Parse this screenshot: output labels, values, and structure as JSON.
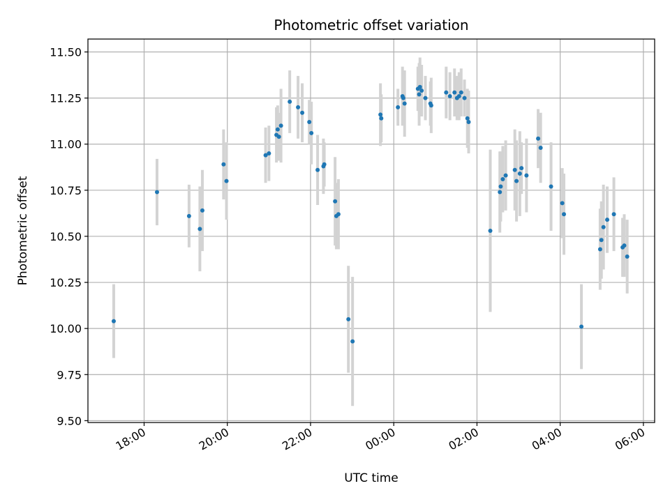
{
  "chart_data": {
    "type": "scatter",
    "title": "Photometric offset variation",
    "xlabel": "UTC time",
    "ylabel": "Photometric offset",
    "x_unit": "hours since 00:00 UTC (negative = previous day)",
    "xlim": [
      -7.35,
      6.27
    ],
    "ylim": [
      9.49,
      11.57
    ],
    "grid": true,
    "x_ticks": [
      -6,
      -4,
      -2,
      0,
      2,
      4,
      6
    ],
    "x_tick_labels": [
      "18:00",
      "20:00",
      "22:00",
      "00:00",
      "02:00",
      "04:00",
      "06:00"
    ],
    "y_ticks": [
      9.5,
      9.75,
      10.0,
      10.25,
      10.5,
      10.75,
      11.0,
      11.25,
      11.5
    ],
    "y_tick_labels": [
      "9.50",
      "9.75",
      "10.00",
      "10.25",
      "10.50",
      "10.75",
      "11.00",
      "11.25",
      "11.50"
    ],
    "colors": {
      "point": "#1f77b4",
      "errorbar": "#d3d3d3",
      "grid": "#b0b0b0",
      "axes": "#000000"
    },
    "series": [
      {
        "name": "offset",
        "points": [
          [
            -6.73,
            10.04,
            0.2
          ],
          [
            -5.69,
            10.74,
            0.18
          ],
          [
            -4.92,
            10.61,
            0.17
          ],
          [
            -4.66,
            10.54,
            0.23
          ],
          [
            -4.6,
            10.64,
            0.22
          ],
          [
            -4.09,
            10.89,
            0.19
          ],
          [
            -4.02,
            10.8,
            0.21
          ],
          [
            -3.08,
            10.94,
            0.15
          ],
          [
            -3.0,
            10.95,
            0.15
          ],
          [
            -2.82,
            11.05,
            0.15
          ],
          [
            -2.79,
            11.08,
            0.13
          ],
          [
            -2.76,
            11.04,
            0.13
          ],
          [
            -2.71,
            11.1,
            0.2
          ],
          [
            -2.5,
            11.23,
            0.17
          ],
          [
            -2.3,
            11.2,
            0.17
          ],
          [
            -2.2,
            11.17,
            0.16
          ],
          [
            -2.03,
            11.12,
            0.12
          ],
          [
            -1.98,
            11.06,
            0.17
          ],
          [
            -1.83,
            10.86,
            0.19
          ],
          [
            -1.69,
            10.88,
            0.15
          ],
          [
            -1.67,
            10.89,
            0.12
          ],
          [
            -1.41,
            10.69,
            0.24
          ],
          [
            -1.38,
            10.61,
            0.18
          ],
          [
            -1.33,
            10.62,
            0.19
          ],
          [
            -1.09,
            10.05,
            0.29
          ],
          [
            -0.99,
            9.93,
            0.35
          ],
          [
            -0.32,
            11.16,
            0.17
          ],
          [
            -0.3,
            11.14,
            0.13
          ],
          [
            0.1,
            11.2,
            0.1
          ],
          [
            0.21,
            11.26,
            0.16
          ],
          [
            0.23,
            11.25,
            0.14
          ],
          [
            0.26,
            11.22,
            0.18
          ],
          [
            0.58,
            11.3,
            0.12
          ],
          [
            0.61,
            11.27,
            0.17
          ],
          [
            0.63,
            11.31,
            0.16
          ],
          [
            0.67,
            11.29,
            0.14
          ],
          [
            0.76,
            11.25,
            0.12
          ],
          [
            0.88,
            11.22,
            0.12
          ],
          [
            0.9,
            11.21,
            0.15
          ],
          [
            1.26,
            11.28,
            0.14
          ],
          [
            1.35,
            11.26,
            0.13
          ],
          [
            1.46,
            11.28,
            0.13
          ],
          [
            1.52,
            11.25,
            0.12
          ],
          [
            1.57,
            11.26,
            0.13
          ],
          [
            1.62,
            11.28,
            0.13
          ],
          [
            1.7,
            11.25,
            0.1
          ],
          [
            1.77,
            11.14,
            0.16
          ],
          [
            1.8,
            11.12,
            0.17
          ],
          [
            2.32,
            10.53,
            0.44
          ],
          [
            2.55,
            10.74,
            0.22
          ],
          [
            2.57,
            10.77,
            0.19
          ],
          [
            2.62,
            10.81,
            0.18
          ],
          [
            2.69,
            10.83,
            0.19
          ],
          [
            2.91,
            10.86,
            0.22
          ],
          [
            2.95,
            10.8,
            0.22
          ],
          [
            3.03,
            10.84,
            0.23
          ],
          [
            3.07,
            10.87,
            0.14
          ],
          [
            3.19,
            10.83,
            0.2
          ],
          [
            3.47,
            11.03,
            0.16
          ],
          [
            3.53,
            10.98,
            0.19
          ],
          [
            3.78,
            10.77,
            0.24
          ],
          [
            4.05,
            10.68,
            0.19
          ],
          [
            4.09,
            10.62,
            0.22
          ],
          [
            4.51,
            10.01,
            0.23
          ],
          [
            4.96,
            10.43,
            0.22
          ],
          [
            4.99,
            10.48,
            0.21
          ],
          [
            5.04,
            10.55,
            0.23
          ],
          [
            5.13,
            10.59,
            0.18
          ],
          [
            5.29,
            10.62,
            0.2
          ],
          [
            5.5,
            10.44,
            0.16
          ],
          [
            5.54,
            10.45,
            0.17
          ],
          [
            5.61,
            10.39,
            0.2
          ]
        ]
      }
    ]
  }
}
